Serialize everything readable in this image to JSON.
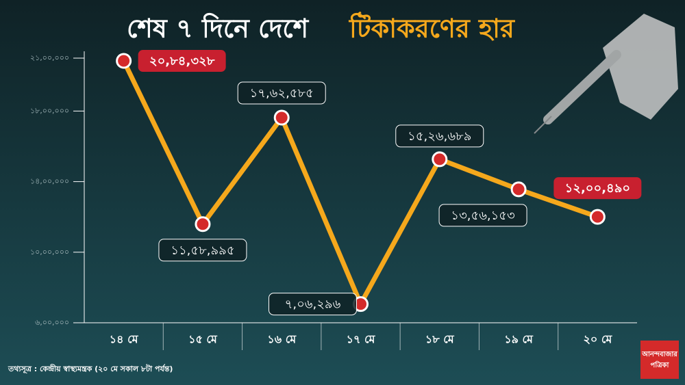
{
  "chart_data": {
    "type": "line",
    "title": "শেষ ৭ দিনে দেশে",
    "title_highlight": "টিকাকরণের হার",
    "categories": [
      "১৪ মে",
      "১৫ মে",
      "১৬ মে",
      "১৭ মে",
      "১৮ মে",
      "১৯ মে",
      "২০ মে"
    ],
    "series": [
      {
        "color": "#f5a81c",
        "values": [
          2084328,
          1158995,
          1762585,
          706296,
          1526689,
          1356153,
          1200490
        ],
        "value_labels": [
          "২০,৮৪,৩২৮",
          "১১,৫৮,৯৯৫",
          "১৭,৬২,৫৮৫",
          "৭,০৬,২৯৬",
          "১৫,২৬,৬৮৯",
          "১৩,৫৬,১৫৩",
          "১২,০০,৪৯০"
        ]
      }
    ],
    "highlighted": [
      0,
      6
    ],
    "highlight_color": "#c8202f",
    "marker_color": "#d42a2a",
    "ylim": [
      600000,
      2100000
    ],
    "yticks": [
      {
        "value": 2100000,
        "label": "২১,০০,০০০"
      },
      {
        "value": 1800000,
        "label": "১৮,০০,০০০"
      },
      {
        "value": 1400000,
        "label": "১৪,০০,০০০"
      },
      {
        "value": 1000000,
        "label": "১০,০০,০০০"
      },
      {
        "value": 600000,
        "label": "৬,০০,০০০"
      }
    ],
    "source": "তথ্যসূত্র : কেন্দ্রীয় স্বাস্থ্যমন্ত্রক (২০ মে সকাল ৮টা পর্যন্ত)",
    "logo": [
      "আনন্দবাজার",
      "পত্রিকা"
    ]
  }
}
